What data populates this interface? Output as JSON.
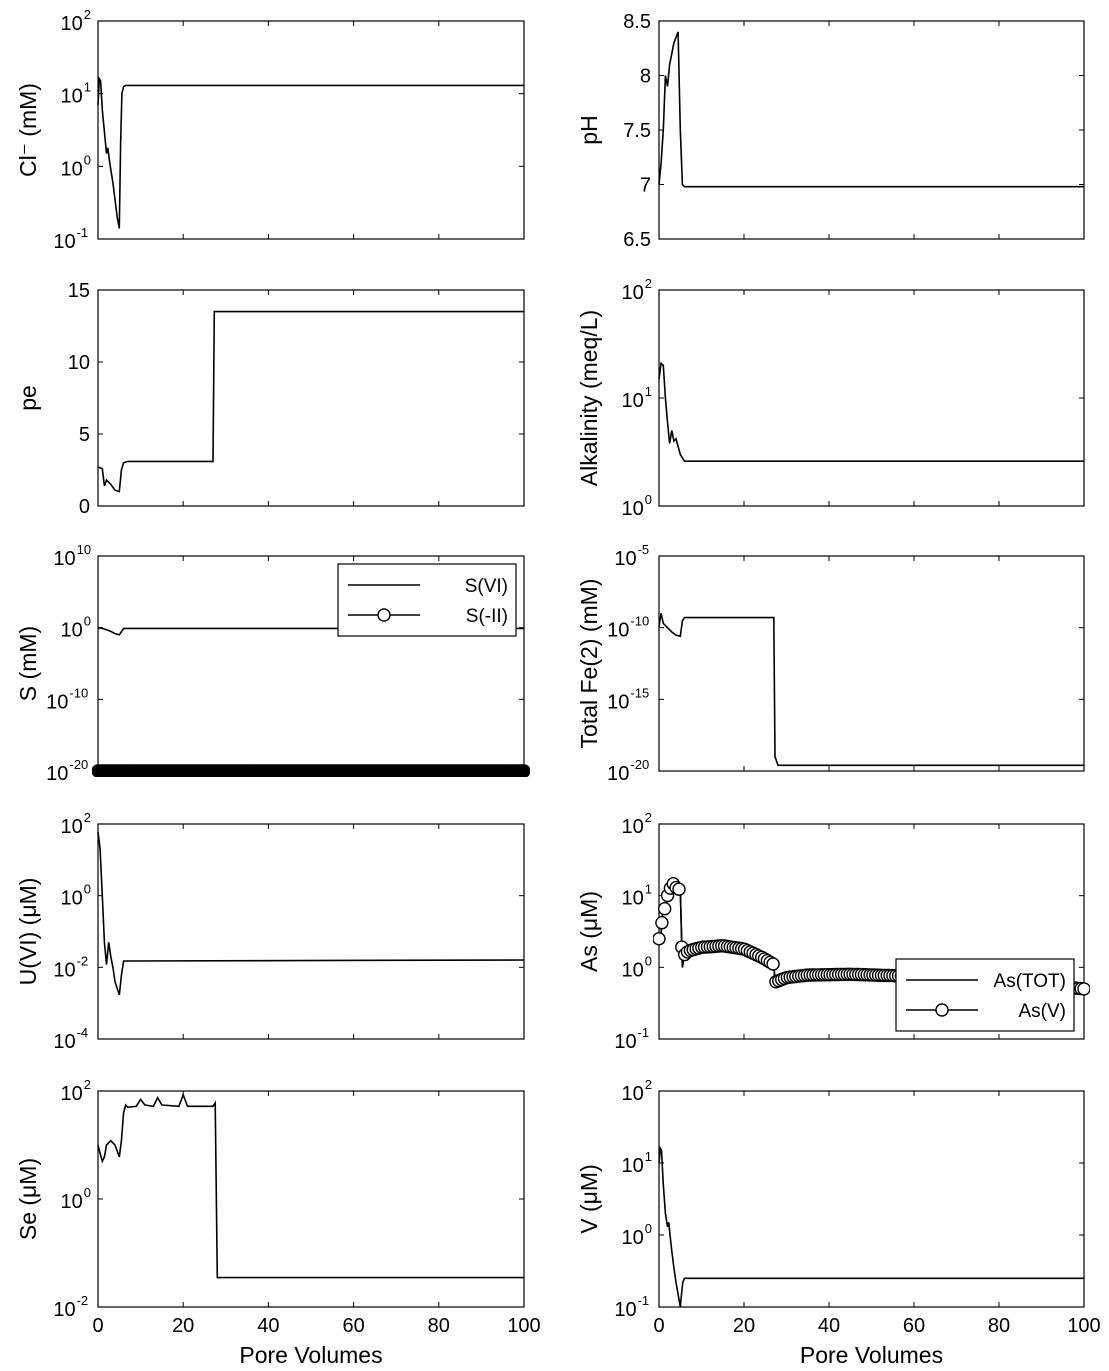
{
  "chart_data": [
    {
      "id": "cl",
      "type": "line",
      "ylabel": "Cl⁻ (mM)",
      "xlabel": "",
      "yscale": "log",
      "ylim_exp": [
        -1,
        2
      ],
      "xlim": [
        0,
        100
      ],
      "xticks": [
        0,
        20,
        40,
        60,
        80,
        100
      ],
      "show_xticklabels": false,
      "series": [
        {
          "marker": "none",
          "x": [
            0,
            0.3,
            0.6,
            1.0,
            1.5,
            2.0,
            2.3,
            2.6,
            3.0,
            3.5,
            4.0,
            4.5,
            5.0,
            5.3,
            5.6,
            6.0,
            6.5,
            100
          ],
          "y": [
            7,
            16,
            15,
            6,
            3,
            1.5,
            1.8,
            1.3,
            0.9,
            0.6,
            0.35,
            0.2,
            0.14,
            2,
            10,
            12.5,
            13,
            13
          ]
        }
      ]
    },
    {
      "id": "ph",
      "type": "line",
      "ylabel": "pH",
      "xlabel": "",
      "yscale": "linear",
      "ylim": [
        6.5,
        8.5
      ],
      "yticks": [
        6.5,
        7,
        7.5,
        8,
        8.5
      ],
      "ytick_labels": [
        "6.5",
        "7",
        "7.5",
        "8",
        "8.5"
      ],
      "xlim": [
        0,
        100
      ],
      "xticks": [
        0,
        20,
        40,
        60,
        80,
        100
      ],
      "show_xticklabels": false,
      "series": [
        {
          "marker": "none",
          "x": [
            0,
            0.5,
            1.0,
            1.5,
            2.0,
            2.5,
            3.0,
            3.5,
            4.0,
            4.5,
            5.0,
            5.5,
            6.0,
            100
          ],
          "y": [
            7.0,
            7.2,
            7.5,
            8.0,
            7.9,
            8.1,
            8.2,
            8.3,
            8.35,
            8.4,
            7.5,
            7.0,
            6.98,
            6.98
          ]
        }
      ]
    },
    {
      "id": "pe",
      "type": "line",
      "ylabel": "pe",
      "xlabel": "",
      "yscale": "linear",
      "ylim": [
        0,
        15
      ],
      "yticks": [
        0,
        5,
        10,
        15
      ],
      "ytick_labels": [
        "0",
        "5",
        "10",
        "15"
      ],
      "xlim": [
        0,
        100
      ],
      "xticks": [
        0,
        20,
        40,
        60,
        80,
        100
      ],
      "show_xticklabels": false,
      "series": [
        {
          "marker": "none",
          "x": [
            0,
            1.0,
            1.5,
            2.0,
            3.0,
            4.0,
            5.0,
            5.5,
            6.0,
            7.0,
            27.0,
            27.3,
            100
          ],
          "y": [
            2.7,
            2.6,
            1.4,
            1.8,
            1.5,
            1.1,
            1.0,
            2.5,
            3.0,
            3.1,
            3.1,
            13.5,
            13.5
          ]
        }
      ]
    },
    {
      "id": "alk",
      "type": "line",
      "ylabel": "Alkalinity (meq/L)",
      "xlabel": "",
      "yscale": "log",
      "ylim_exp": [
        0,
        2
      ],
      "xlim": [
        0,
        100
      ],
      "xticks": [
        0,
        20,
        40,
        60,
        80,
        100
      ],
      "show_xticklabels": false,
      "series": [
        {
          "marker": "none",
          "x": [
            0,
            0.5,
            1.0,
            1.5,
            2.0,
            2.5,
            3.0,
            3.5,
            4.0,
            5.0,
            6.0,
            100
          ],
          "y": [
            15,
            21,
            20,
            10,
            6,
            3.8,
            5,
            4,
            4.2,
            3.0,
            2.6,
            2.6
          ]
        }
      ]
    },
    {
      "id": "s",
      "type": "line",
      "ylabel": "S (mM)",
      "xlabel": "",
      "yscale": "log",
      "ylim_exp": [
        -20,
        10
      ],
      "ytick_exps": [
        -20,
        -10,
        0,
        10
      ],
      "xlim": [
        0,
        100
      ],
      "xticks": [
        0,
        20,
        40,
        60,
        80,
        100
      ],
      "show_xticklabels": false,
      "legend": {
        "position": "top-right",
        "entries": [
          "S(VI)",
          "S(-II)"
        ]
      },
      "series": [
        {
          "name": "S(VI)",
          "marker": "none",
          "x": [
            0,
            1.0,
            2.0,
            3.0,
            4.0,
            5.0,
            6.0,
            100
          ],
          "y": [
            1.0,
            0.8,
            0.5,
            0.3,
            0.15,
            0.1,
            0.8,
            0.8
          ]
        },
        {
          "name": "S(-II)",
          "marker": "filled-circle",
          "n_markers": 220,
          "x": [
            0,
            100
          ],
          "y": [
            1e-20,
            1e-20
          ]
        }
      ]
    },
    {
      "id": "fe",
      "type": "line",
      "ylabel": "Total Fe(2) (mM)",
      "xlabel": "",
      "yscale": "log",
      "ylim_exp": [
        -20,
        -5
      ],
      "ytick_exps": [
        -20,
        -15,
        -10,
        -5
      ],
      "xlim": [
        0,
        100
      ],
      "xticks": [
        0,
        20,
        40,
        60,
        80,
        100
      ],
      "show_xticklabels": false,
      "series": [
        {
          "marker": "none",
          "x": [
            0,
            0.5,
            1.0,
            2.0,
            3.0,
            4.0,
            5.0,
            5.5,
            6.0,
            27.0,
            27.3,
            28.0,
            100
          ],
          "y": [
            1.2e-10,
            1e-09,
            2e-10,
            1e-10,
            5e-11,
            3e-11,
            2.5e-11,
            3e-10,
            5e-10,
            5e-10,
            1e-19,
            2.5e-20,
            2.5e-20
          ]
        }
      ]
    },
    {
      "id": "u",
      "type": "line",
      "ylabel": "U(VI) (μM)",
      "xlabel": "",
      "yscale": "log",
      "ylim_exp": [
        -4,
        2
      ],
      "ytick_exps": [
        -4,
        -2,
        0,
        2
      ],
      "xlim": [
        0,
        100
      ],
      "xticks": [
        0,
        20,
        40,
        60,
        80,
        100
      ],
      "show_xticklabels": false,
      "series": [
        {
          "marker": "none",
          "x": [
            0,
            0.5,
            1.0,
            1.5,
            2.0,
            2.5,
            3.0,
            3.5,
            4.0,
            5.0,
            5.5,
            6.0,
            100
          ],
          "y": [
            60,
            20,
            1,
            0.05,
            0.012,
            0.05,
            0.02,
            0.01,
            0.004,
            0.0017,
            0.006,
            0.015,
            0.016
          ]
        }
      ]
    },
    {
      "id": "as",
      "type": "line",
      "ylabel": "As (μM)",
      "xlabel": "",
      "yscale": "log",
      "ylim_exp": [
        -1,
        2
      ],
      "xlim": [
        0,
        100
      ],
      "xticks": [
        0,
        20,
        40,
        60,
        80,
        100
      ],
      "show_xticklabels": false,
      "legend": {
        "position": "bottom-right",
        "entries": [
          "As(TOT)",
          "As(V)"
        ]
      },
      "series": [
        {
          "name": "As(TOT)",
          "marker": "none",
          "x": [
            0,
            0.5,
            1.0,
            1.5,
            2.0,
            2.5,
            3.0,
            3.5,
            4.0,
            5.0,
            5.5,
            6.0,
            7.0,
            10.0,
            15.0,
            20.0,
            24.0,
            27.0,
            27.3,
            30.0,
            35.0,
            45.0,
            60.0,
            80.0,
            100.0
          ],
          "y": [
            2.5,
            3.0,
            8,
            6,
            10,
            12,
            14,
            15,
            13,
            12,
            1.0,
            1.5,
            1.7,
            1.9,
            2.0,
            1.8,
            1.4,
            1.1,
            0.62,
            0.72,
            0.78,
            0.8,
            0.75,
            0.65,
            0.5
          ]
        },
        {
          "name": "As(V)",
          "marker": "circle",
          "n_markers": 150,
          "x": [
            0,
            0.5,
            1.0,
            1.5,
            2.0,
            2.5,
            3.0,
            3.5,
            4.0,
            5.0,
            5.5,
            6.0,
            7.0,
            10.0,
            15.0,
            20.0,
            24.0,
            27.0,
            27.3,
            30.0,
            35.0,
            45.0,
            60.0,
            80.0,
            100.0
          ],
          "y": [
            2.5,
            3.0,
            8,
            6,
            10,
            12,
            14,
            15,
            13,
            12,
            1.0,
            1.5,
            1.7,
            1.9,
            2.0,
            1.8,
            1.4,
            1.1,
            0.62,
            0.72,
            0.78,
            0.8,
            0.75,
            0.65,
            0.5
          ]
        }
      ]
    },
    {
      "id": "se",
      "type": "line",
      "ylabel": "Se (μM)",
      "xlabel": "Pore Volumes",
      "yscale": "log",
      "ylim_exp": [
        -2,
        2
      ],
      "ytick_exps": [
        -2,
        0,
        2
      ],
      "xlim": [
        0,
        100
      ],
      "xticks": [
        0,
        20,
        40,
        60,
        80,
        100
      ],
      "xtick_labels": [
        "0",
        "20",
        "40",
        "60",
        "80",
        "100"
      ],
      "show_xticklabels": true,
      "series": [
        {
          "marker": "none",
          "x": [
            0,
            0.5,
            1.0,
            1.5,
            2.0,
            3.0,
            4.0,
            5.0,
            5.5,
            6.0,
            6.5,
            7.0,
            9.0,
            10.0,
            11.0,
            13.0,
            14.0,
            15.0,
            19.0,
            20.0,
            21.0,
            27.0,
            27.5,
            28.0,
            100
          ],
          "y": [
            10,
            7,
            5,
            6,
            10,
            12,
            10,
            6,
            12,
            40,
            55,
            50,
            52,
            70,
            55,
            52,
            75,
            55,
            52,
            85,
            52,
            52,
            60,
            0.035,
            0.035
          ]
        }
      ]
    },
    {
      "id": "v",
      "type": "line",
      "ylabel": "V (μM)",
      "xlabel": "Pore Volumes",
      "yscale": "log",
      "ylim_exp": [
        -1,
        2
      ],
      "xlim": [
        0,
        100
      ],
      "xticks": [
        0,
        20,
        40,
        60,
        80,
        100
      ],
      "xtick_labels": [
        "0",
        "20",
        "40",
        "60",
        "80",
        "100"
      ],
      "show_xticklabels": true,
      "series": [
        {
          "marker": "none",
          "x": [
            0,
            0.3,
            0.6,
            1.0,
            1.5,
            2.0,
            2.3,
            2.6,
            3.0,
            3.5,
            4.0,
            4.5,
            5.0,
            5.3,
            5.6,
            6.0,
            100
          ],
          "y": [
            10,
            16,
            15,
            5,
            2,
            1.3,
            1.5,
            1.0,
            0.6,
            0.35,
            0.22,
            0.15,
            0.1,
            0.15,
            0.22,
            0.25,
            0.25
          ]
        }
      ]
    }
  ]
}
